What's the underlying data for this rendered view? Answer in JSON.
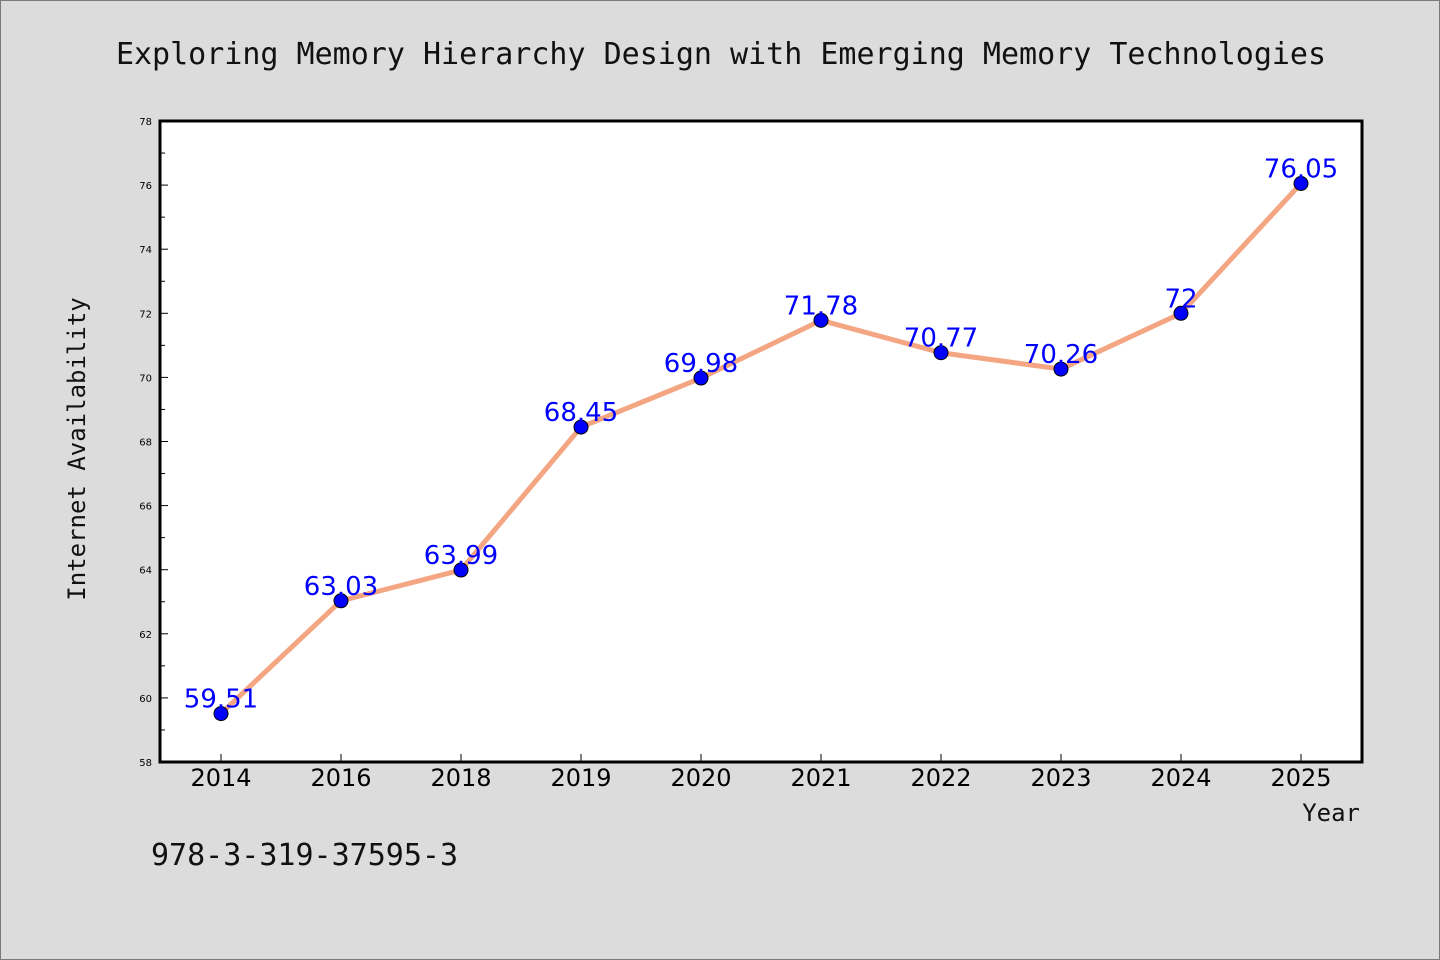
{
  "chart_data": {
    "type": "line",
    "title": "Exploring Memory Hierarchy Design with Emerging Memory Technologies",
    "xlabel": "Year",
    "ylabel": "Internet Availability",
    "categories": [
      "2014",
      "2016",
      "2018",
      "2019",
      "2020",
      "2021",
      "2022",
      "2023",
      "2024",
      "2025"
    ],
    "values": [
      59.51,
      63.03,
      63.99,
      68.45,
      69.98,
      71.78,
      70.77,
      70.26,
      72,
      76.05
    ],
    "data_labels": [
      "59.51",
      "63.03",
      "63.99",
      "68.45",
      "69.98",
      "71.78",
      "70.77",
      "70.26",
      "72",
      "76.05"
    ],
    "ylim": [
      58,
      78
    ],
    "yticks": [
      58,
      60,
      62,
      64,
      66,
      68,
      70,
      72,
      74,
      76,
      78
    ],
    "grid": false,
    "legend": "none",
    "line_color": "#f4a582",
    "marker_color": "#0000ff",
    "label_color": "#0000ff"
  },
  "footer": {
    "isbn": "978-3-319-37595-3"
  }
}
